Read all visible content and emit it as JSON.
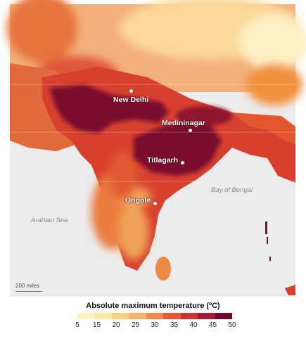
{
  "cities": [
    {
      "name": "New Delhi"
    },
    {
      "name": "Medininagar"
    },
    {
      "name": "Titlagarh"
    },
    {
      "name": "Ongole"
    }
  ],
  "seas": {
    "arabian": "Arabian Sea",
    "bengal": "Bay of Bengal"
  },
  "scale": "200 miles",
  "legend": {
    "title": "Absolute maximum temperature (ºC)",
    "ticks": [
      "5",
      "15",
      "20",
      "25",
      "30",
      "35",
      "40",
      "45",
      "50"
    ],
    "colors": [
      "#fff3c4",
      "#fde7a4",
      "#fbd083",
      "#f7b26a",
      "#f08a4b",
      "#e35a36",
      "#cc3530",
      "#a11a36",
      "#6e0a2d"
    ]
  },
  "palette": {
    "land_far": "#f3c68c",
    "land_hot": "#e0452e",
    "core": "#7a0f2e",
    "sea": "#ececec"
  }
}
